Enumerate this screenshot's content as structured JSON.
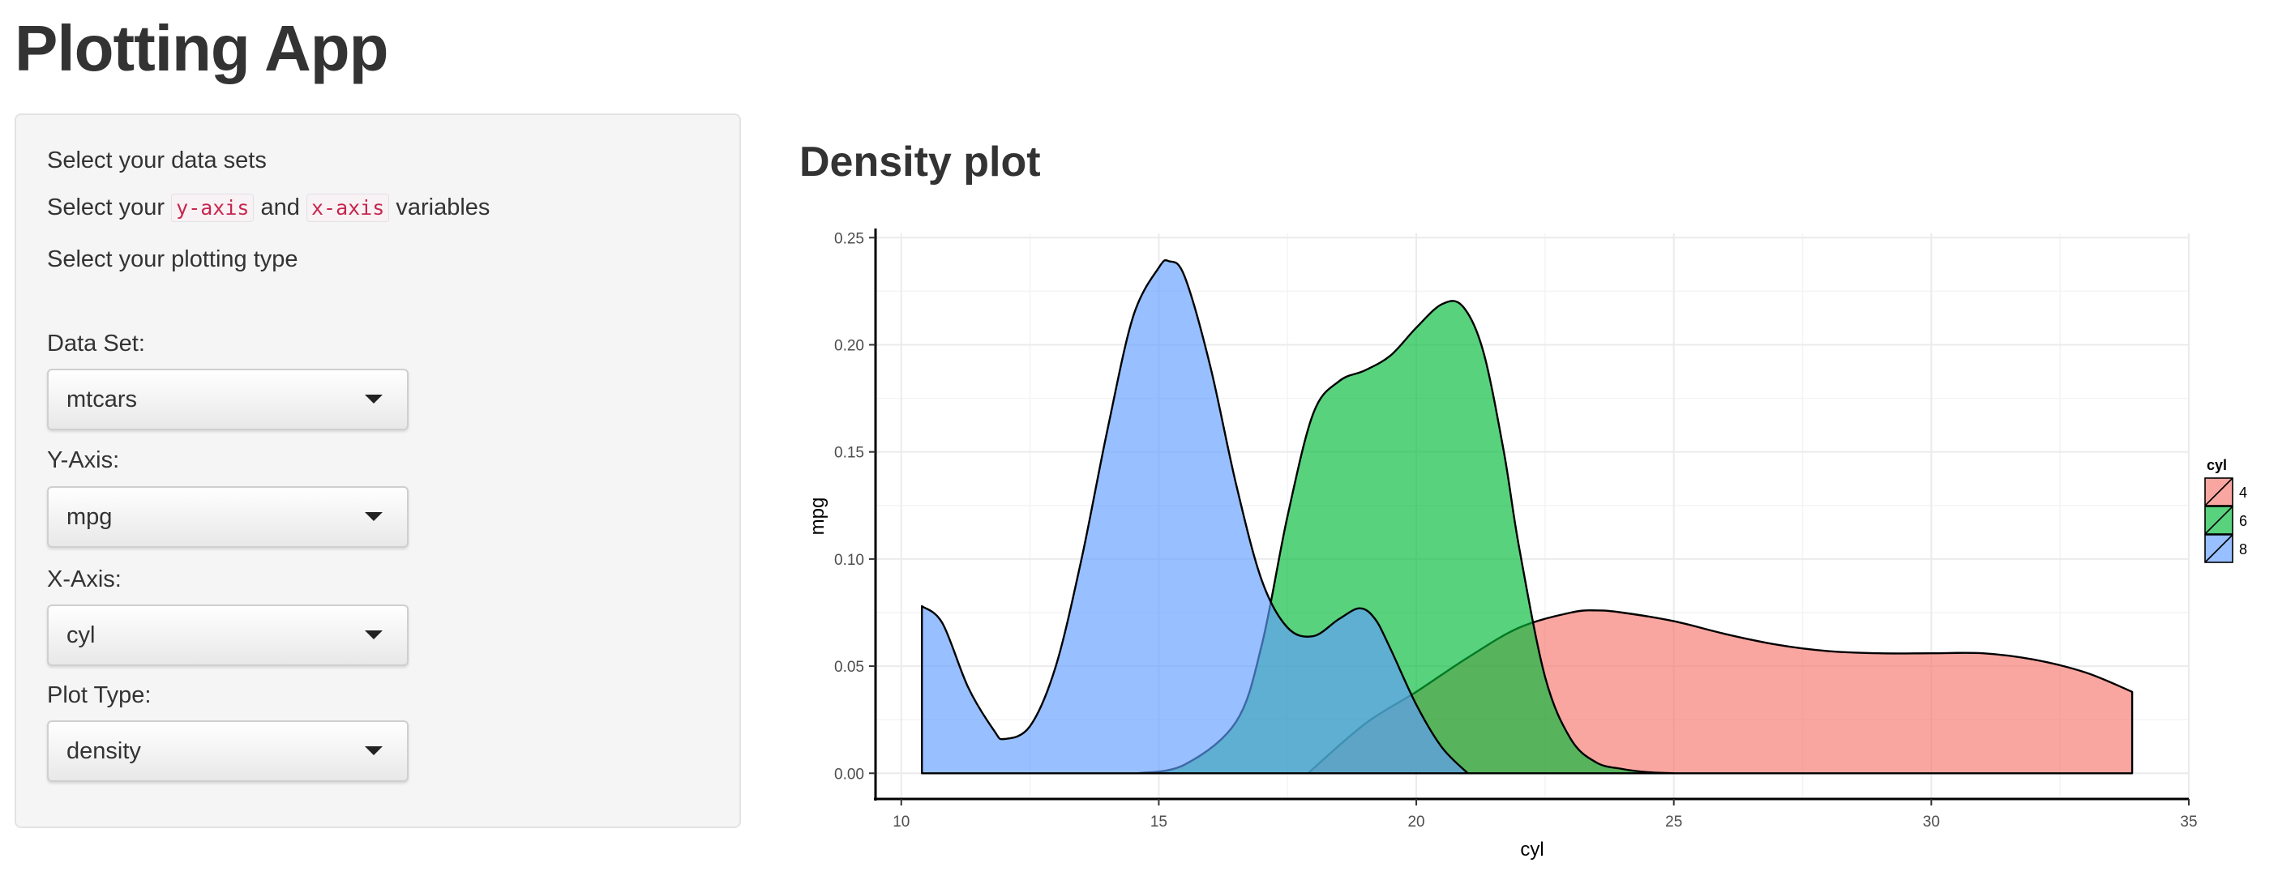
{
  "app": {
    "title": "Plotting App"
  },
  "sidebar": {
    "help": {
      "line1": "Select your data sets",
      "line2_prefix": "Select your",
      "line2_y": "y-axis",
      "line2_and": "and",
      "line2_x": "x-axis",
      "line2_suffix": "variables",
      "line3": "Select your plotting type"
    },
    "controls": {
      "dataset": {
        "label": "Data Set:",
        "value": "mtcars"
      },
      "yaxis": {
        "label": "Y-Axis:",
        "value": "mpg"
      },
      "xaxis": {
        "label": "X-Axis:",
        "value": "cyl"
      },
      "plottype": {
        "label": "Plot Type:",
        "value": "density"
      }
    }
  },
  "main": {
    "plot_title": "Density plot"
  },
  "chart_data": {
    "type": "area",
    "xlabel": "cyl",
    "ylabel": "mpg",
    "xlim": [
      9.5,
      35
    ],
    "ylim": [
      -0.012,
      0.252
    ],
    "x_ticks": [
      "10",
      "15",
      "20",
      "25",
      "30",
      "35"
    ],
    "y_ticks": [
      "0.00",
      "0.05",
      "0.10",
      "0.15",
      "0.20",
      "0.25"
    ],
    "grid": true,
    "legend": {
      "title": "cyl",
      "position": "right"
    },
    "series": [
      {
        "name": "4",
        "color": "#F8766D",
        "x": [
          17.9,
          19,
          20,
          21,
          22,
          23,
          23.5,
          24,
          25,
          26,
          27,
          28,
          29,
          30,
          31,
          32,
          33,
          33.9
        ],
        "y": [
          0.0,
          0.023,
          0.038,
          0.054,
          0.068,
          0.075,
          0.076,
          0.075,
          0.071,
          0.065,
          0.06,
          0.057,
          0.056,
          0.056,
          0.056,
          0.053,
          0.047,
          0.038
        ]
      },
      {
        "name": "6",
        "color": "#00BA38",
        "x": [
          14.6,
          15.5,
          16.5,
          17,
          17.5,
          18,
          18.5,
          19,
          19.5,
          20,
          20.5,
          20.9,
          21.3,
          21.7,
          22,
          22.5,
          23,
          23.5,
          24,
          24.5,
          25
        ],
        "y": [
          0.0,
          0.004,
          0.024,
          0.06,
          0.12,
          0.168,
          0.183,
          0.188,
          0.195,
          0.208,
          0.219,
          0.218,
          0.197,
          0.15,
          0.105,
          0.045,
          0.016,
          0.005,
          0.002,
          0.0005,
          0.0
        ]
      },
      {
        "name": "8",
        "color": "#619CFF",
        "x": [
          10.4,
          10.8,
          11.3,
          11.8,
          12.0,
          12.5,
          13.0,
          13.5,
          14.0,
          14.5,
          15.0,
          15.2,
          15.5,
          16.0,
          16.5,
          17.0,
          17.5,
          18.0,
          18.5,
          18.9,
          19.2,
          19.5,
          20.0,
          20.5,
          21.0
        ],
        "y": [
          0.078,
          0.07,
          0.04,
          0.02,
          0.016,
          0.022,
          0.05,
          0.1,
          0.16,
          0.213,
          0.236,
          0.239,
          0.232,
          0.19,
          0.135,
          0.09,
          0.068,
          0.064,
          0.072,
          0.077,
          0.072,
          0.058,
          0.032,
          0.012,
          0.0
        ]
      }
    ]
  }
}
